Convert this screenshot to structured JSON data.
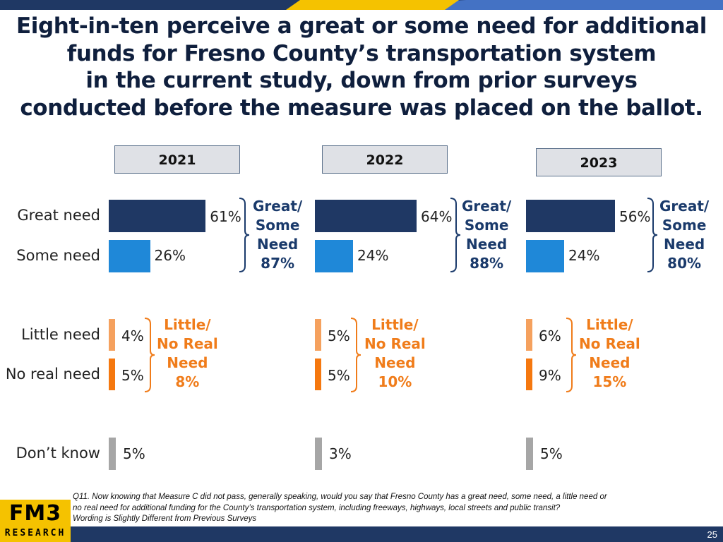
{
  "title_lines": [
    "Eight-in-ten perceive a great or some need for additional",
    "funds for Fresno County’s transportation system",
    "in the current study, down from prior surveys",
    "conducted before the measure was placed on the ballot."
  ],
  "chart_data": {
    "type": "bar",
    "orientation": "horizontal",
    "title": "Eight-in-ten perceive a great or some need for additional funds for Fresno County’s transportation system in the current study, down from prior surveys conducted before the measure was placed on the ballot.",
    "categories": [
      "Great need",
      "Some need",
      "Little need",
      "No real need",
      "Don’t know"
    ],
    "panels": [
      "2021",
      "2022",
      "2023"
    ],
    "unit": "%",
    "series": [
      {
        "name": "2021",
        "values": [
          61,
          26,
          4,
          5,
          5
        ],
        "labels": [
          "61%",
          "26%",
          "4%",
          "5%",
          "5%"
        ]
      },
      {
        "name": "2022",
        "values": [
          64,
          24,
          5,
          5,
          3
        ],
        "labels": [
          "64%",
          "24%",
          "5%",
          "5%",
          "3%"
        ]
      },
      {
        "name": "2023",
        "values": [
          56,
          24,
          6,
          9,
          5
        ],
        "labels": [
          "56%",
          "24%",
          "6%",
          "9%",
          "5%"
        ]
      }
    ],
    "groups": [
      {
        "lines": [
          "Great/",
          "Some",
          "Need"
        ],
        "totals": [
          "87%",
          "88%",
          "80%"
        ]
      },
      {
        "lines": [
          "Little/",
          "No Real",
          "Need"
        ],
        "totals": [
          "8%",
          "10%",
          "15%"
        ]
      }
    ],
    "colors": {
      "Great need": "#1f3864",
      "Some need": "#1f88d8",
      "Little need": "#f5a15e",
      "No real need": "#f5780f",
      "Don’t know": "#a6a6a6"
    },
    "xlim": [
      0,
      100
    ]
  },
  "footnote": {
    "lines": [
      "Q11. Now knowing that Measure C did not pass, generally speaking, would you say that Fresno County has a great need, some need, a little need or",
      "no real need for additional funding for the County’s transportation system, including freeways, highways, local streets and public transit?",
      "Wording is Slightly Different from Previous Surveys"
    ]
  },
  "logo": {
    "main": "FM3",
    "sub": "RESEARCH"
  },
  "page_number": "25",
  "theme": {
    "navy": "#1f3864",
    "accent": "#f5c200",
    "blue_text": "#1a3a6b",
    "orange_text": "#f07c1a"
  }
}
